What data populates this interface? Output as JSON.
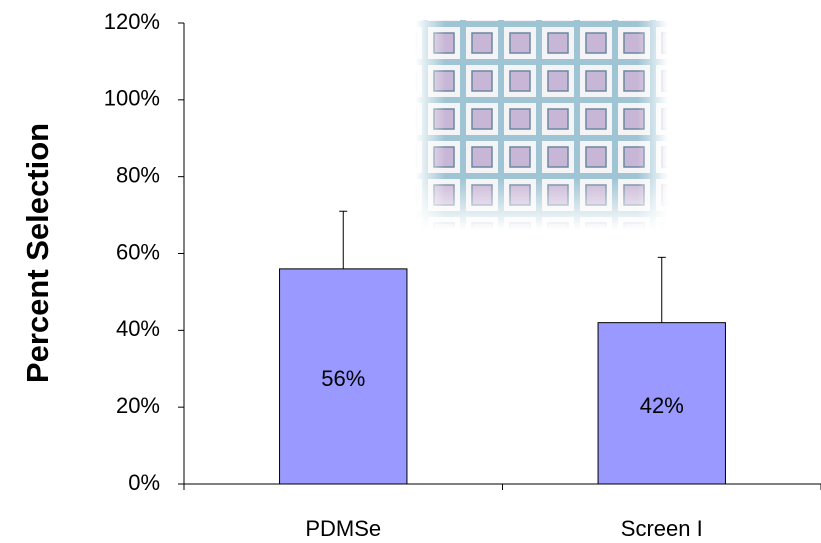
{
  "chart_data": {
    "type": "bar",
    "y_label": "Percent Selection",
    "categories": [
      "PDMSe",
      "Screen I"
    ],
    "values": [
      56,
      42
    ],
    "value_labels": [
      "56%",
      "42%"
    ],
    "errors": [
      15,
      17
    ],
    "color": "#9999ff",
    "ylim": [
      0,
      120
    ],
    "yticks": [
      {
        "value": 0,
        "label": "0%"
      },
      {
        "value": 20,
        "label": "20%"
      },
      {
        "value": 40,
        "label": "40%"
      },
      {
        "value": 60,
        "label": "60%"
      },
      {
        "value": 80,
        "label": "80%"
      },
      {
        "value": 100,
        "label": "100%"
      },
      {
        "value": 120,
        "label": "120%"
      }
    ]
  }
}
